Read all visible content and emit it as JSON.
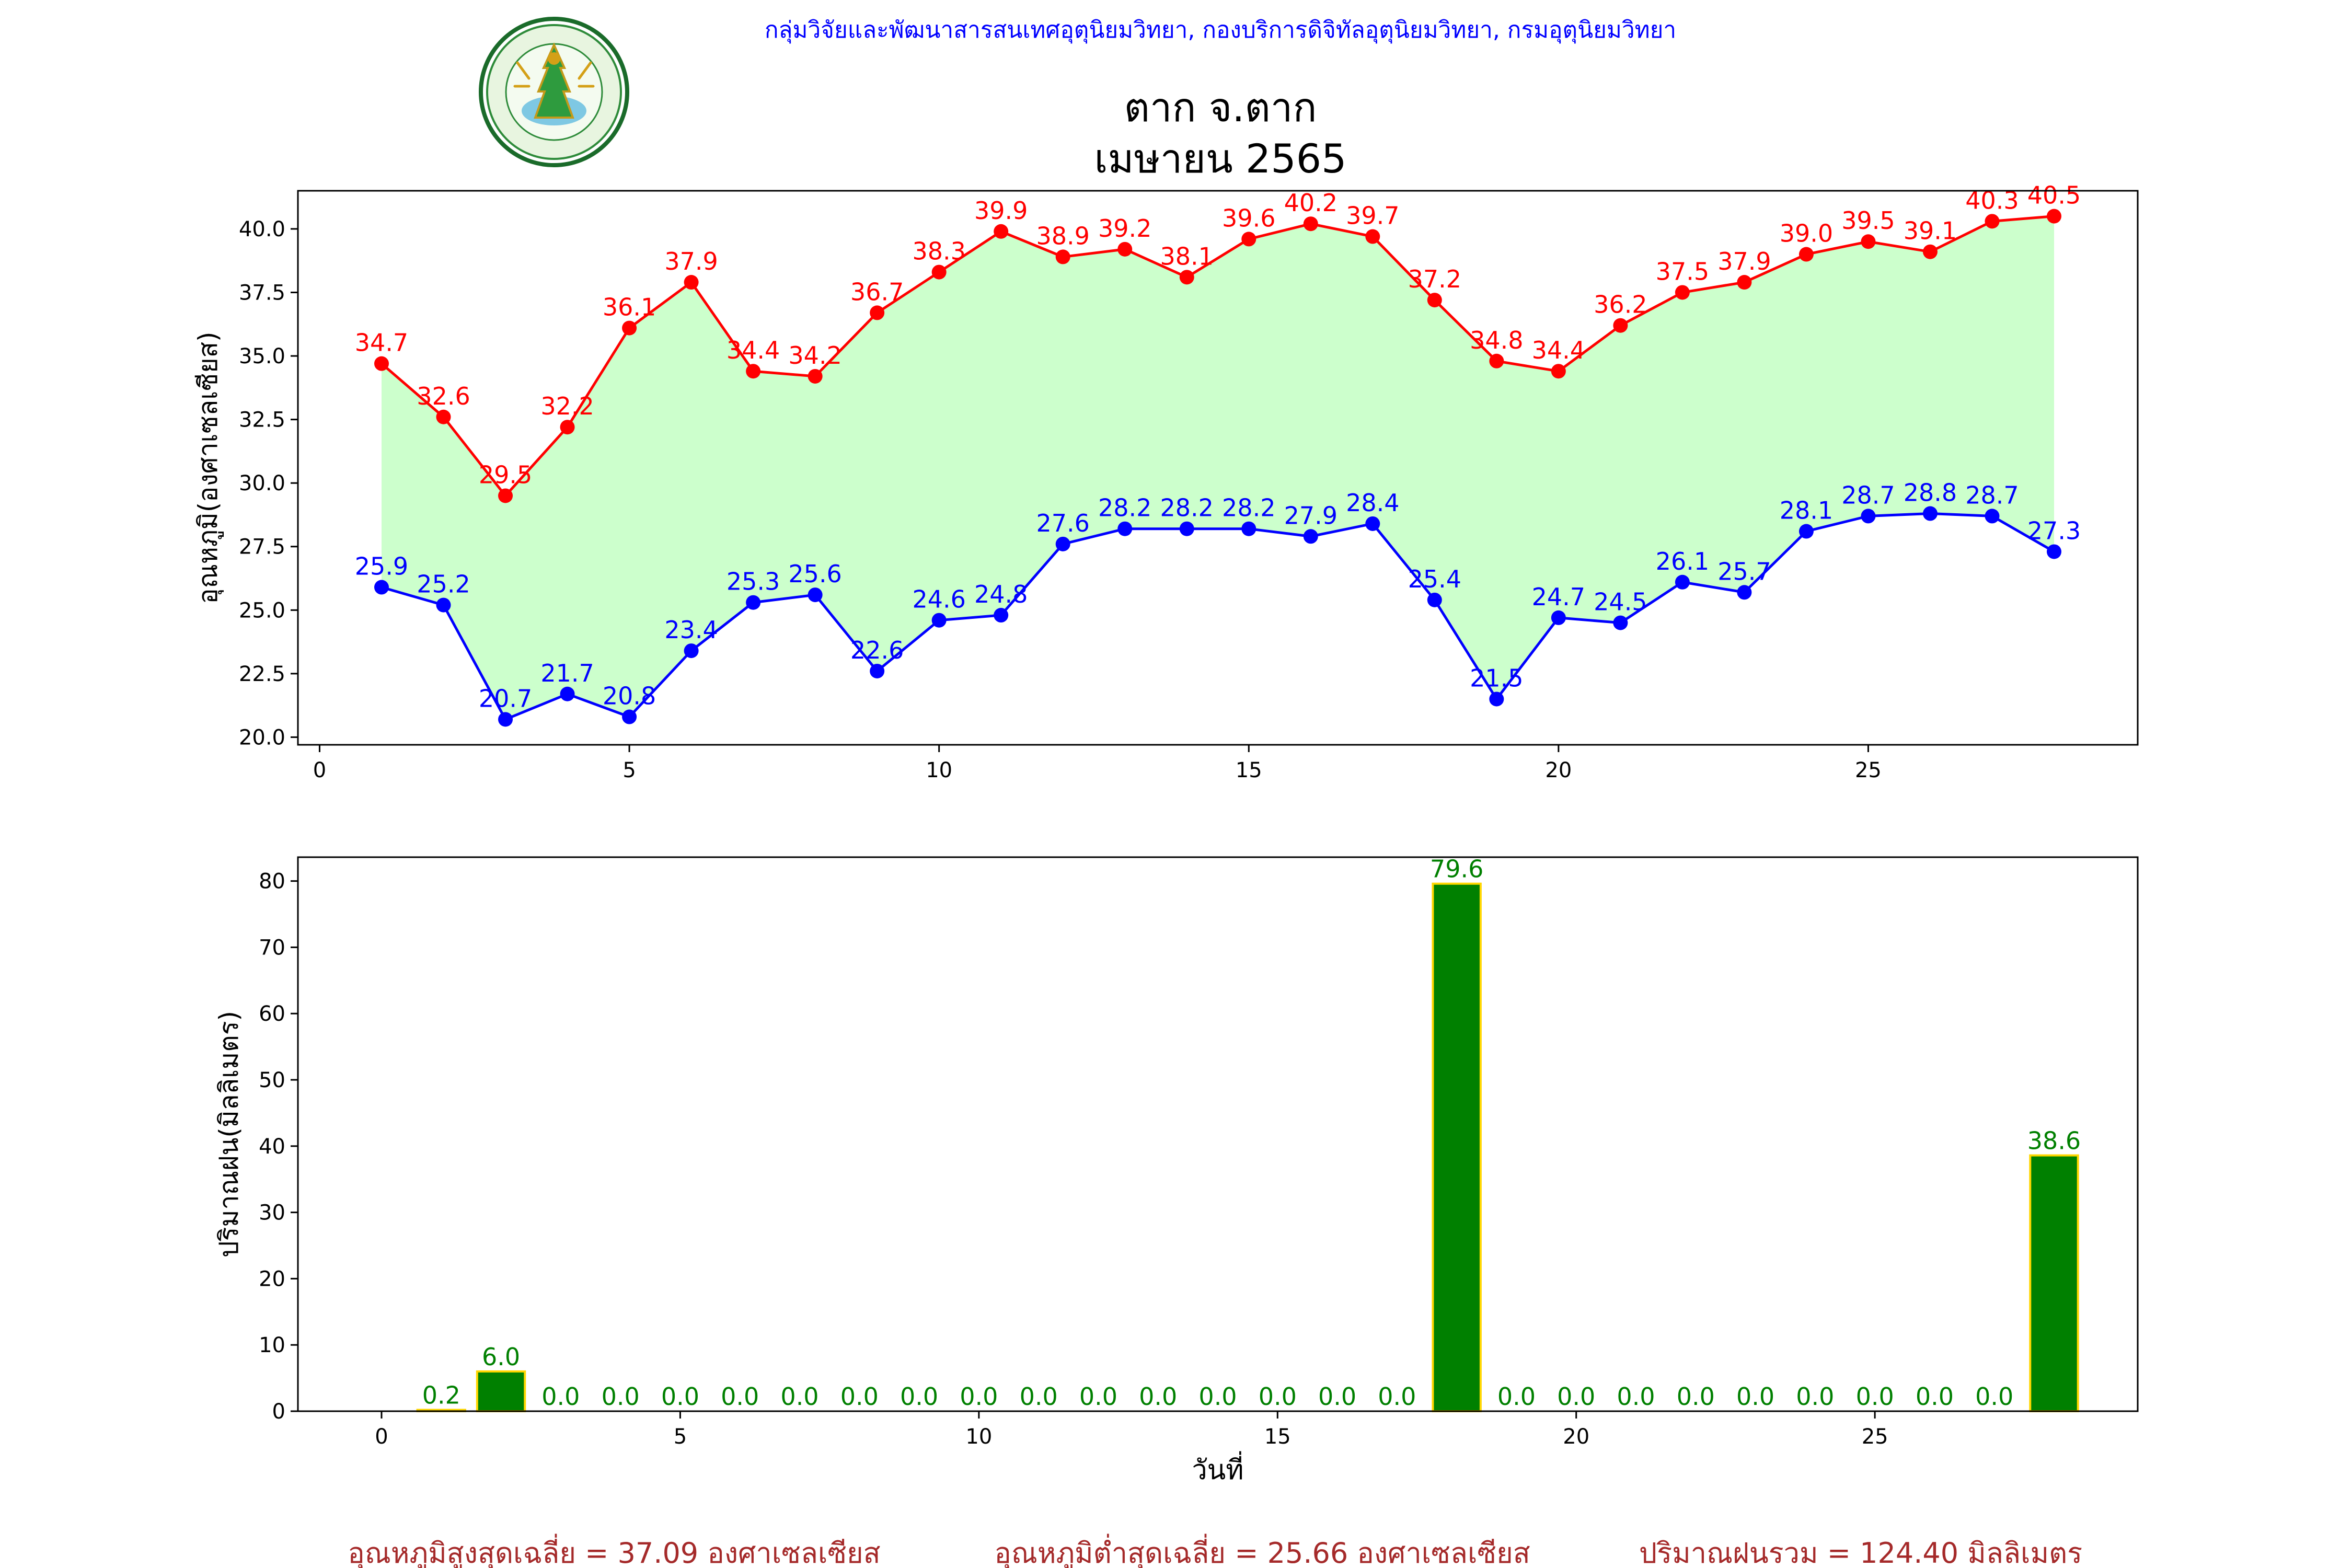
{
  "header": {
    "department_line": "กลุ่มวิจัยและพัฒนาสารสนเทศอุตุนิยมวิทยา, กองบริการดิจิทัลอุตุนิยมวิทยา, กรมอุตุนิยมวิทยา",
    "title_line1": "ตาก จ.ตาก",
    "title_line2": "เมษายน 2565",
    "logo_text_top": "กรมอุตุนิยมวิทยา",
    "logo_text_bottom": "METEOROLOGICAL DEPARTMENT"
  },
  "colors": {
    "max_series": "#ff0000",
    "min_series": "#0000ff",
    "fill_between": "#ccffcc",
    "rain_bar": "#008000",
    "rain_bar_edge": "#ffd700",
    "rain_label": "#008000",
    "header_text": "#0000ff",
    "footer_text": "#a52a2a"
  },
  "chart_data": [
    {
      "type": "line",
      "xlabel": "",
      "ylabel": "อุณหภูมิ(องศาเซลเซียส)",
      "xlim": [
        -0.35,
        29.35
      ],
      "ylim": [
        19.7,
        41.5
      ],
      "xticks": [
        0,
        5,
        10,
        15,
        20,
        25
      ],
      "yticks": [
        "20.0",
        "22.5",
        "25.0",
        "27.5",
        "30.0",
        "32.5",
        "35.0",
        "37.5",
        "40.0"
      ],
      "x": [
        1,
        2,
        3,
        4,
        5,
        6,
        7,
        8,
        9,
        10,
        11,
        12,
        13,
        14,
        15,
        16,
        17,
        18,
        19,
        20,
        21,
        22,
        23,
        24,
        25,
        26,
        27,
        28
      ],
      "series": [
        {
          "color": "#ff0000",
          "values": [
            34.7,
            32.6,
            29.5,
            32.2,
            36.1,
            37.9,
            34.4,
            34.2,
            36.7,
            38.3,
            39.9,
            38.9,
            39.2,
            38.1,
            39.6,
            40.2,
            39.7,
            37.2,
            34.8,
            34.4,
            36.2,
            37.5,
            37.9,
            39.0,
            39.5,
            39.1,
            40.3,
            40.5
          ]
        },
        {
          "color": "#0000ff",
          "values": [
            25.9,
            25.2,
            20.7,
            21.7,
            20.8,
            23.4,
            25.3,
            25.6,
            22.6,
            24.6,
            24.8,
            27.6,
            28.2,
            28.2,
            28.2,
            27.9,
            28.4,
            25.4,
            21.5,
            24.7,
            24.5,
            26.1,
            25.7,
            28.1,
            28.7,
            28.8,
            28.7,
            27.3
          ]
        }
      ],
      "grid": false,
      "fill_between_series": true
    },
    {
      "type": "bar",
      "xlabel": "วันที่",
      "ylabel": "ปริมาณฝน(มิลลิเมตร)",
      "xlim": [
        -1.4,
        29.4
      ],
      "ylim": [
        0,
        83.6
      ],
      "xticks": [
        0,
        5,
        10,
        15,
        20,
        25
      ],
      "yticks": [
        0,
        10,
        20,
        30,
        40,
        50,
        60,
        70,
        80
      ],
      "x": [
        1,
        2,
        3,
        4,
        5,
        6,
        7,
        8,
        9,
        10,
        11,
        12,
        13,
        14,
        15,
        16,
        17,
        18,
        19,
        20,
        21,
        22,
        23,
        24,
        25,
        26,
        27,
        28
      ],
      "values": [
        0.2,
        6.0,
        0.0,
        0.0,
        0.0,
        0.0,
        0.0,
        0.0,
        0.0,
        0.0,
        0.0,
        0.0,
        0.0,
        0.0,
        0.0,
        0.0,
        0.0,
        79.6,
        0.0,
        0.0,
        0.0,
        0.0,
        0.0,
        0.0,
        0.0,
        0.0,
        0.0,
        38.6
      ],
      "grid": false
    }
  ],
  "footer": {
    "avg_max": "อุณหภูมิสูงสุดเฉลี่ย = 37.09 องศาเซลเซียส",
    "avg_min": "อุณหภูมิต่ำสุดเฉลี่ย = 25.66 องศาเซลเซียส",
    "total_rain": "ปริมาณฝนรวม = 124.40 มิลลิเมตร"
  }
}
